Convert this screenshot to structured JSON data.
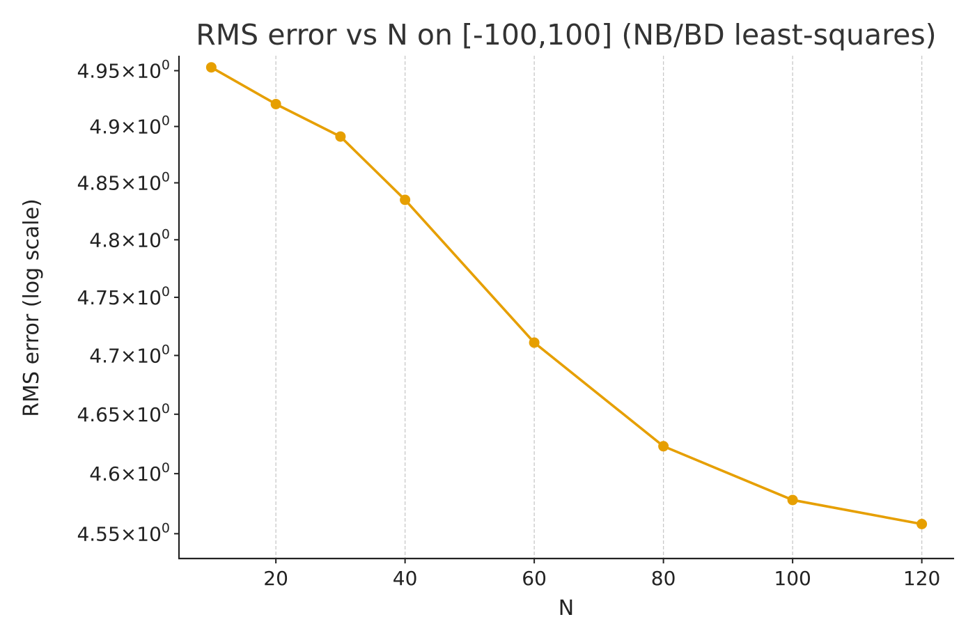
{
  "chart_data": {
    "type": "line",
    "title": "RMS error vs N on [-100,100] (NB/BD least-squares)",
    "xlabel": "N",
    "ylabel": "RMS error (log scale)",
    "yscale": "log",
    "grid": "vertical-dashed",
    "legend": "none",
    "x": [
      10,
      20,
      30,
      40,
      60,
      80,
      100,
      120
    ],
    "series": [
      {
        "values": [
          4.953,
          4.92,
          4.891,
          4.835,
          4.711,
          4.623,
          4.578,
          4.558
        ],
        "color": "#E69F00"
      }
    ],
    "xlim": [
      5,
      125
    ],
    "ylim": [
      4.5295,
      4.9635
    ],
    "xticks": [
      {
        "value": 20,
        "label": "20"
      },
      {
        "value": 40,
        "label": "40"
      },
      {
        "value": 60,
        "label": "60"
      },
      {
        "value": 80,
        "label": "80"
      },
      {
        "value": 100,
        "label": "100"
      },
      {
        "value": 120,
        "label": "120"
      }
    ],
    "yticks": [
      {
        "value": 4.95,
        "mantissa": "4.95",
        "base": "10",
        "exp": "0"
      },
      {
        "value": 4.9,
        "mantissa": "4.9",
        "base": "10",
        "exp": "0"
      },
      {
        "value": 4.85,
        "mantissa": "4.85",
        "base": "10",
        "exp": "0"
      },
      {
        "value": 4.8,
        "mantissa": "4.8",
        "base": "10",
        "exp": "0"
      },
      {
        "value": 4.75,
        "mantissa": "4.75",
        "base": "10",
        "exp": "0"
      },
      {
        "value": 4.7,
        "mantissa": "4.7",
        "base": "10",
        "exp": "0"
      },
      {
        "value": 4.65,
        "mantissa": "4.65",
        "base": "10",
        "exp": "0"
      },
      {
        "value": 4.6,
        "mantissa": "4.6",
        "base": "10",
        "exp": "0"
      },
      {
        "value": 4.55,
        "mantissa": "4.55",
        "base": "10",
        "exp": "0"
      }
    ]
  }
}
